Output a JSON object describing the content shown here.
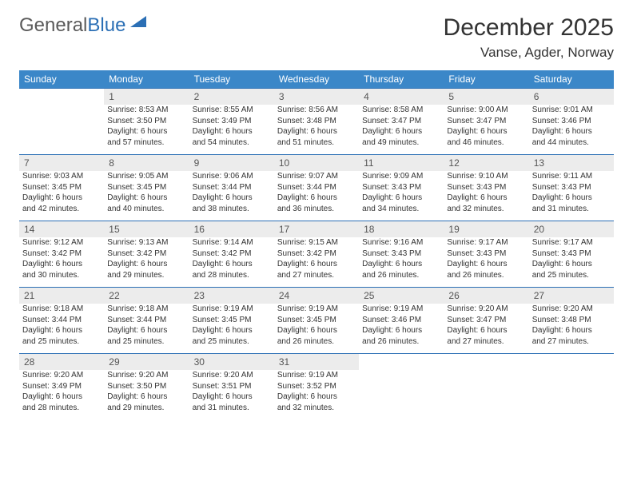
{
  "logo": {
    "part1": "General",
    "part2": "Blue"
  },
  "title": "December 2025",
  "location": "Vanse, Agder, Norway",
  "day_headers": [
    "Sunday",
    "Monday",
    "Tuesday",
    "Wednesday",
    "Thursday",
    "Friday",
    "Saturday"
  ],
  "colors": {
    "header_bg": "#3b87c8",
    "header_text": "#ffffff",
    "daynum_bg": "#ececec",
    "daynum_border": "#2b6fb5",
    "body_text": "#333333",
    "logo_gray": "#5a5a5a",
    "logo_blue": "#2b6fb5",
    "page_bg": "#ffffff"
  },
  "typography": {
    "title_fontsize": 30,
    "location_fontsize": 17,
    "dayhead_fontsize": 12,
    "daynum_fontsize": 12,
    "cell_fontsize": 10
  },
  "weeks": [
    [
      null,
      {
        "n": "1",
        "sr": "Sunrise: 8:53 AM",
        "ss": "Sunset: 3:50 PM",
        "d1": "Daylight: 6 hours",
        "d2": "and 57 minutes."
      },
      {
        "n": "2",
        "sr": "Sunrise: 8:55 AM",
        "ss": "Sunset: 3:49 PM",
        "d1": "Daylight: 6 hours",
        "d2": "and 54 minutes."
      },
      {
        "n": "3",
        "sr": "Sunrise: 8:56 AM",
        "ss": "Sunset: 3:48 PM",
        "d1": "Daylight: 6 hours",
        "d2": "and 51 minutes."
      },
      {
        "n": "4",
        "sr": "Sunrise: 8:58 AM",
        "ss": "Sunset: 3:47 PM",
        "d1": "Daylight: 6 hours",
        "d2": "and 49 minutes."
      },
      {
        "n": "5",
        "sr": "Sunrise: 9:00 AM",
        "ss": "Sunset: 3:47 PM",
        "d1": "Daylight: 6 hours",
        "d2": "and 46 minutes."
      },
      {
        "n": "6",
        "sr": "Sunrise: 9:01 AM",
        "ss": "Sunset: 3:46 PM",
        "d1": "Daylight: 6 hours",
        "d2": "and 44 minutes."
      }
    ],
    [
      {
        "n": "7",
        "sr": "Sunrise: 9:03 AM",
        "ss": "Sunset: 3:45 PM",
        "d1": "Daylight: 6 hours",
        "d2": "and 42 minutes."
      },
      {
        "n": "8",
        "sr": "Sunrise: 9:05 AM",
        "ss": "Sunset: 3:45 PM",
        "d1": "Daylight: 6 hours",
        "d2": "and 40 minutes."
      },
      {
        "n": "9",
        "sr": "Sunrise: 9:06 AM",
        "ss": "Sunset: 3:44 PM",
        "d1": "Daylight: 6 hours",
        "d2": "and 38 minutes."
      },
      {
        "n": "10",
        "sr": "Sunrise: 9:07 AM",
        "ss": "Sunset: 3:44 PM",
        "d1": "Daylight: 6 hours",
        "d2": "and 36 minutes."
      },
      {
        "n": "11",
        "sr": "Sunrise: 9:09 AM",
        "ss": "Sunset: 3:43 PM",
        "d1": "Daylight: 6 hours",
        "d2": "and 34 minutes."
      },
      {
        "n": "12",
        "sr": "Sunrise: 9:10 AM",
        "ss": "Sunset: 3:43 PM",
        "d1": "Daylight: 6 hours",
        "d2": "and 32 minutes."
      },
      {
        "n": "13",
        "sr": "Sunrise: 9:11 AM",
        "ss": "Sunset: 3:43 PM",
        "d1": "Daylight: 6 hours",
        "d2": "and 31 minutes."
      }
    ],
    [
      {
        "n": "14",
        "sr": "Sunrise: 9:12 AM",
        "ss": "Sunset: 3:42 PM",
        "d1": "Daylight: 6 hours",
        "d2": "and 30 minutes."
      },
      {
        "n": "15",
        "sr": "Sunrise: 9:13 AM",
        "ss": "Sunset: 3:42 PM",
        "d1": "Daylight: 6 hours",
        "d2": "and 29 minutes."
      },
      {
        "n": "16",
        "sr": "Sunrise: 9:14 AM",
        "ss": "Sunset: 3:42 PM",
        "d1": "Daylight: 6 hours",
        "d2": "and 28 minutes."
      },
      {
        "n": "17",
        "sr": "Sunrise: 9:15 AM",
        "ss": "Sunset: 3:42 PM",
        "d1": "Daylight: 6 hours",
        "d2": "and 27 minutes."
      },
      {
        "n": "18",
        "sr": "Sunrise: 9:16 AM",
        "ss": "Sunset: 3:43 PM",
        "d1": "Daylight: 6 hours",
        "d2": "and 26 minutes."
      },
      {
        "n": "19",
        "sr": "Sunrise: 9:17 AM",
        "ss": "Sunset: 3:43 PM",
        "d1": "Daylight: 6 hours",
        "d2": "and 26 minutes."
      },
      {
        "n": "20",
        "sr": "Sunrise: 9:17 AM",
        "ss": "Sunset: 3:43 PM",
        "d1": "Daylight: 6 hours",
        "d2": "and 25 minutes."
      }
    ],
    [
      {
        "n": "21",
        "sr": "Sunrise: 9:18 AM",
        "ss": "Sunset: 3:44 PM",
        "d1": "Daylight: 6 hours",
        "d2": "and 25 minutes."
      },
      {
        "n": "22",
        "sr": "Sunrise: 9:18 AM",
        "ss": "Sunset: 3:44 PM",
        "d1": "Daylight: 6 hours",
        "d2": "and 25 minutes."
      },
      {
        "n": "23",
        "sr": "Sunrise: 9:19 AM",
        "ss": "Sunset: 3:45 PM",
        "d1": "Daylight: 6 hours",
        "d2": "and 25 minutes."
      },
      {
        "n": "24",
        "sr": "Sunrise: 9:19 AM",
        "ss": "Sunset: 3:45 PM",
        "d1": "Daylight: 6 hours",
        "d2": "and 26 minutes."
      },
      {
        "n": "25",
        "sr": "Sunrise: 9:19 AM",
        "ss": "Sunset: 3:46 PM",
        "d1": "Daylight: 6 hours",
        "d2": "and 26 minutes."
      },
      {
        "n": "26",
        "sr": "Sunrise: 9:20 AM",
        "ss": "Sunset: 3:47 PM",
        "d1": "Daylight: 6 hours",
        "d2": "and 27 minutes."
      },
      {
        "n": "27",
        "sr": "Sunrise: 9:20 AM",
        "ss": "Sunset: 3:48 PM",
        "d1": "Daylight: 6 hours",
        "d2": "and 27 minutes."
      }
    ],
    [
      {
        "n": "28",
        "sr": "Sunrise: 9:20 AM",
        "ss": "Sunset: 3:49 PM",
        "d1": "Daylight: 6 hours",
        "d2": "and 28 minutes."
      },
      {
        "n": "29",
        "sr": "Sunrise: 9:20 AM",
        "ss": "Sunset: 3:50 PM",
        "d1": "Daylight: 6 hours",
        "d2": "and 29 minutes."
      },
      {
        "n": "30",
        "sr": "Sunrise: 9:20 AM",
        "ss": "Sunset: 3:51 PM",
        "d1": "Daylight: 6 hours",
        "d2": "and 31 minutes."
      },
      {
        "n": "31",
        "sr": "Sunrise: 9:19 AM",
        "ss": "Sunset: 3:52 PM",
        "d1": "Daylight: 6 hours",
        "d2": "and 32 minutes."
      },
      null,
      null,
      null
    ]
  ]
}
